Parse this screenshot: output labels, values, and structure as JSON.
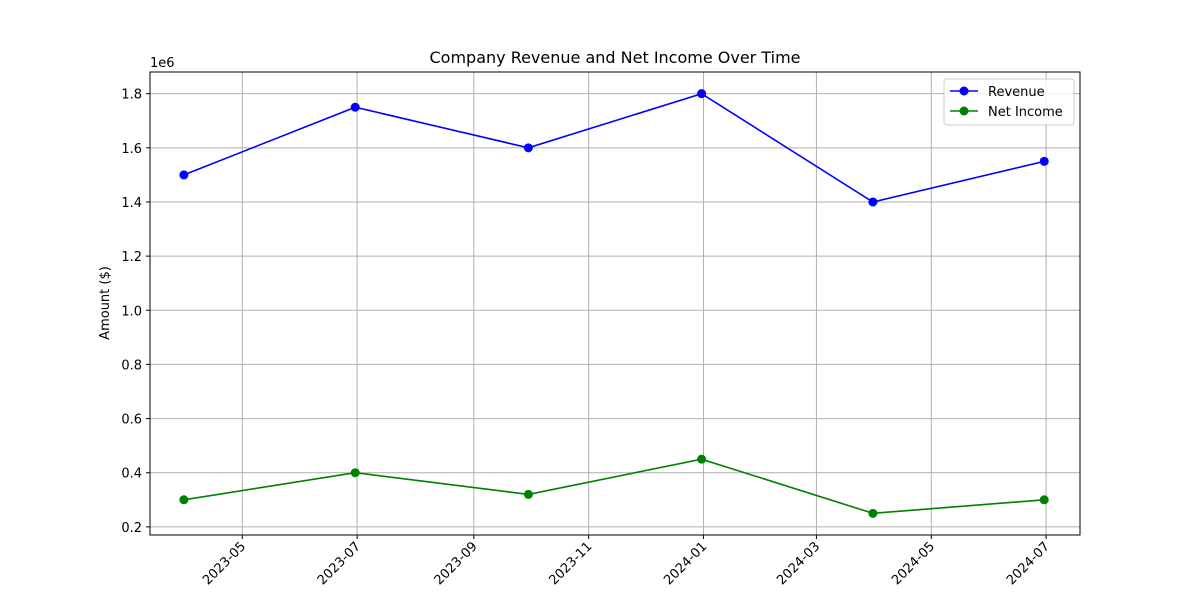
{
  "chart_data": {
    "type": "line",
    "title": "Company Revenue and Net Income Over Time",
    "xlabel": "",
    "ylabel": "Amount ($)",
    "y_offset_label": "1e6",
    "x_tick_labels": [
      "2023-05",
      "2023-07",
      "2023-09",
      "2023-11",
      "2024-01",
      "2024-03",
      "2024-05",
      "2024-07"
    ],
    "y_tick_labels": [
      "0.2",
      "0.4",
      "0.6",
      "0.8",
      "1.0",
      "1.2",
      "1.4",
      "1.6",
      "1.8"
    ],
    "y_ticks": [
      200000,
      400000,
      600000,
      800000,
      1000000,
      1200000,
      1400000,
      1600000,
      1800000
    ],
    "ylim": [
      170000,
      1880000
    ],
    "xlim": [
      "2023-03-13",
      "2024-07-19"
    ],
    "x_ticks": [
      "2023-05-01",
      "2023-07-01",
      "2023-09-01",
      "2023-11-01",
      "2024-01-01",
      "2024-03-01",
      "2024-05-01",
      "2024-07-01"
    ],
    "x": [
      "2023-03-31",
      "2023-06-30",
      "2023-09-30",
      "2023-12-31",
      "2024-03-31",
      "2024-06-30"
    ],
    "series": [
      {
        "name": "Revenue",
        "color": "#0000ff",
        "marker": "circle",
        "values": [
          1500000,
          1750000,
          1600000,
          1800000,
          1400000,
          1550000
        ]
      },
      {
        "name": "Net Income",
        "color": "#008000",
        "marker": "circle",
        "values": [
          300000,
          400000,
          320000,
          450000,
          250000,
          300000
        ]
      }
    ],
    "grid": true,
    "legend_position": "upper right"
  }
}
